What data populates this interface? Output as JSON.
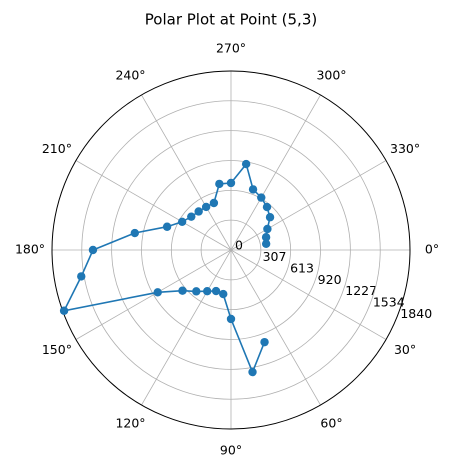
{
  "chart_data": {
    "type": "polar",
    "title": "Polar Plot at Point (5,3)",
    "theta": [
      70,
      80,
      90,
      100,
      110,
      120,
      130,
      140,
      150,
      160,
      170,
      180,
      190,
      200,
      210,
      220,
      230,
      240,
      250,
      260,
      270,
      280,
      290,
      300,
      310,
      320,
      330,
      340,
      350
    ],
    "values": [
      1008,
      1274,
      709,
      460,
      449,
      489,
      555,
      651,
      870,
      1826,
      1563,
      1419,
      1004,
      699,
      580,
      533,
      517,
      511,
      514,
      690,
      689,
      897,
      663,
      622,
      576,
      524,
      432,
      384,
      367
    ],
    "color": "#1f77b4",
    "rlim": [
      0,
      1840
    ],
    "rticks": [
      0,
      307,
      613,
      920,
      1227,
      1534,
      1840
    ],
    "thetaticks": [
      {
        "value": 0,
        "label": "0°"
      },
      {
        "value": 30,
        "label": "30°"
      },
      {
        "value": 60,
        "label": "60°"
      },
      {
        "value": 90,
        "label": "90°"
      },
      {
        "value": 120,
        "label": "120°"
      },
      {
        "value": 150,
        "label": "150°"
      },
      {
        "value": 180,
        "label": "180°"
      },
      {
        "value": 210,
        "label": "210°"
      },
      {
        "value": 240,
        "label": "240°"
      },
      {
        "value": 270,
        "label": "270°"
      },
      {
        "value": 300,
        "label": "300°"
      },
      {
        "value": 330,
        "label": "330°"
      }
    ],
    "theta_direction": "clockwise",
    "grid": true
  }
}
